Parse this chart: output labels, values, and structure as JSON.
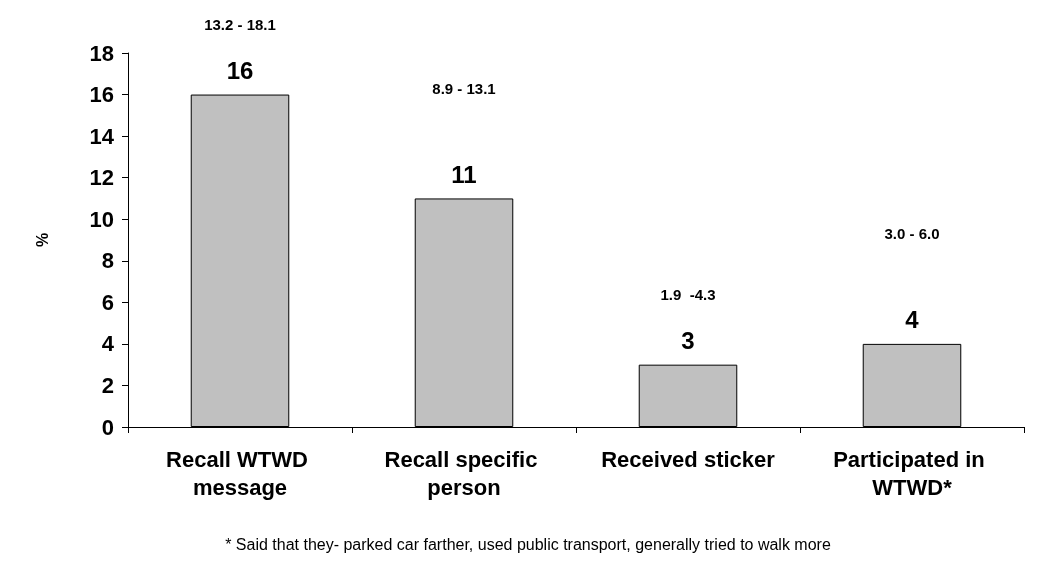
{
  "chart_data": {
    "type": "bar",
    "ylabel": "%",
    "categories": [
      "Recall WTWD message",
      "Recall specific person",
      "Received sticker",
      "Participated in WTWD*"
    ],
    "values": [
      16,
      11,
      3,
      4
    ],
    "color": "#c0c0c0",
    "data_labels": true,
    "ylim": [
      0,
      18
    ],
    "yticks": [
      0,
      2,
      4,
      6,
      8,
      10,
      12,
      14,
      16,
      18
    ],
    "grid": false,
    "annotations": [
      "13.2 - 18.1",
      "8.9 - 13.1",
      "1.9  -4.3",
      "3.0 - 6.0",
      "* Said that they- parked car farther, used public transport, generally tried to walk more"
    ]
  }
}
